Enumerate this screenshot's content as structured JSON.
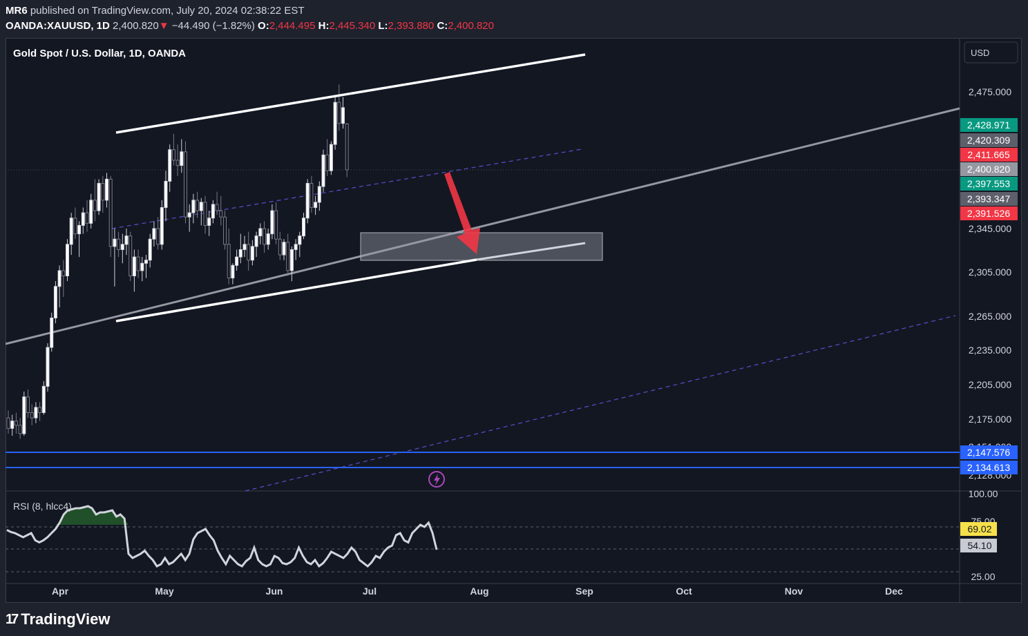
{
  "header": {
    "author": "MR6",
    "published": "published on TradingView.com, July 20, 2024 02:38:22 EST",
    "symbol": "OANDA:XAUUSD, 1D",
    "last": "2,400.820",
    "change_arrow": "▼",
    "change": "−44.490 (−1.82%)",
    "o_label": "O:",
    "o_value": "2,444.495",
    "h_label": "H:",
    "h_value": "2,445.340",
    "l_label": "L:",
    "l_value": "2,393.880",
    "c_label": "C:",
    "c_value": "2,400.820"
  },
  "chart_title": "Gold Spot / U.S. Dollar, 1D, OANDA",
  "currency_button": "USD",
  "footer": {
    "brand": "TradingView",
    "brand_icon": "tradingview-logo-icon"
  },
  "colors": {
    "background": "#131722",
    "bull": "#d1d4dc",
    "bear": "#787b86",
    "trend_white": "#ffffff",
    "trend_grey": "#9598a1",
    "dashed_purple": "#5b4fcf",
    "arrow": "#f23645",
    "rsi_line": "#d1d4dc",
    "rsi_fill": "#2e7d32",
    "blue_level": "#2962ff"
  },
  "chart_data": [
    {
      "type": "candlestick",
      "title": "Gold Spot / U.S. Dollar, 1D, OANDA",
      "currency": "USD",
      "x_ticks": [
        "Apr",
        "May",
        "Jun",
        "Jul",
        "Aug",
        "Sep",
        "Oct",
        "Nov",
        "Dec"
      ],
      "y_ticks": [
        "2,475.000",
        "2,345.000",
        "2,305.000",
        "2,265.000",
        "2,235.000",
        "2,205.000",
        "2,175.000",
        "2,151.000",
        "2,128.000"
      ],
      "price_labels": [
        {
          "value": "2,428.971",
          "color": "#089981"
        },
        {
          "value": "2,420.309",
          "color": "#5d606b"
        },
        {
          "value": "2,411.665",
          "color": "#f23645"
        },
        {
          "value": "2,400.820",
          "color": "#9598a1"
        },
        {
          "value": "2,397.553",
          "color": "#089981"
        },
        {
          "value": "2,393.347",
          "color": "#5d606b"
        },
        {
          "value": "2,391.526",
          "color": "#f23645"
        },
        {
          "value": "2,147.576",
          "color": "#2962ff"
        },
        {
          "value": "2,134.613",
          "color": "#2962ff"
        }
      ],
      "horizontal_levels": [
        2147.576,
        2134.613
      ],
      "ohlc": [
        [
          2165,
          2172,
          2150,
          2155
        ],
        [
          2155,
          2168,
          2148,
          2162
        ],
        [
          2162,
          2170,
          2150,
          2158
        ],
        [
          2158,
          2165,
          2145,
          2150
        ],
        [
          2150,
          2190,
          2148,
          2185
        ],
        [
          2185,
          2192,
          2165,
          2170
        ],
        [
          2170,
          2178,
          2158,
          2165
        ],
        [
          2165,
          2180,
          2160,
          2175
        ],
        [
          2175,
          2180,
          2162,
          2170
        ],
        [
          2170,
          2200,
          2168,
          2195
        ],
        [
          2195,
          2236,
          2190,
          2232
        ],
        [
          2232,
          2265,
          2228,
          2260
        ],
        [
          2260,
          2295,
          2255,
          2290
        ],
        [
          2290,
          2310,
          2270,
          2305
        ],
        [
          2305,
          2315,
          2280,
          2300
        ],
        [
          2300,
          2335,
          2295,
          2330
        ],
        [
          2330,
          2360,
          2320,
          2355
        ],
        [
          2355,
          2365,
          2335,
          2340
        ],
        [
          2340,
          2352,
          2318,
          2348
        ],
        [
          2348,
          2365,
          2340,
          2360
        ],
        [
          2360,
          2372,
          2342,
          2350
        ],
        [
          2350,
          2378,
          2345,
          2372
        ],
        [
          2372,
          2392,
          2352,
          2362
        ],
        [
          2362,
          2392,
          2358,
          2388
        ],
        [
          2388,
          2395,
          2360,
          2372
        ],
        [
          2372,
          2398,
          2365,
          2392
        ],
        [
          2392,
          2395,
          2318,
          2328
        ],
        [
          2328,
          2345,
          2290,
          2335
        ],
        [
          2335,
          2342,
          2318,
          2325
        ],
        [
          2325,
          2340,
          2312,
          2330
        ],
        [
          2330,
          2345,
          2320,
          2338
        ],
        [
          2338,
          2342,
          2295,
          2300
        ],
        [
          2300,
          2325,
          2285,
          2318
        ],
        [
          2318,
          2325,
          2298,
          2305
        ],
        [
          2305,
          2318,
          2295,
          2312
        ],
        [
          2312,
          2320,
          2298,
          2315
        ],
        [
          2315,
          2340,
          2308,
          2335
        ],
        [
          2335,
          2352,
          2328,
          2345
        ],
        [
          2345,
          2356,
          2325,
          2330
        ],
        [
          2330,
          2372,
          2325,
          2365
        ],
        [
          2365,
          2400,
          2352,
          2390
        ],
        [
          2390,
          2425,
          2380,
          2420
        ],
        [
          2420,
          2435,
          2405,
          2410
        ],
        [
          2410,
          2425,
          2395,
          2405
        ],
        [
          2405,
          2430,
          2398,
          2418
        ],
        [
          2418,
          2428,
          2350,
          2356
        ],
        [
          2356,
          2368,
          2342,
          2360
        ],
        [
          2360,
          2378,
          2350,
          2372
        ],
        [
          2372,
          2380,
          2355,
          2362
        ],
        [
          2362,
          2374,
          2348,
          2370
        ],
        [
          2370,
          2376,
          2340,
          2348
        ],
        [
          2348,
          2362,
          2338,
          2355
        ],
        [
          2355,
          2372,
          2350,
          2368
        ],
        [
          2368,
          2380,
          2358,
          2362
        ],
        [
          2362,
          2376,
          2348,
          2356
        ],
        [
          2356,
          2362,
          2325,
          2330
        ],
        [
          2330,
          2345,
          2292,
          2298
        ],
        [
          2298,
          2312,
          2292,
          2310
        ],
        [
          2310,
          2325,
          2305,
          2318
        ],
        [
          2318,
          2340,
          2312,
          2325
        ],
        [
          2325,
          2338,
          2318,
          2330
        ],
        [
          2330,
          2342,
          2305,
          2315
        ],
        [
          2315,
          2334,
          2310,
          2328
        ],
        [
          2328,
          2342,
          2318,
          2338
        ],
        [
          2338,
          2350,
          2330,
          2345
        ],
        [
          2345,
          2352,
          2322,
          2330
        ],
        [
          2330,
          2345,
          2325,
          2340
        ],
        [
          2340,
          2368,
          2335,
          2362
        ],
        [
          2362,
          2370,
          2330,
          2335
        ],
        [
          2335,
          2342,
          2315,
          2320
        ],
        [
          2320,
          2335,
          2315,
          2332
        ],
        [
          2332,
          2340,
          2300,
          2305
        ],
        [
          2305,
          2328,
          2295,
          2325
        ],
        [
          2325,
          2335,
          2315,
          2330
        ],
        [
          2330,
          2342,
          2318,
          2338
        ],
        [
          2338,
          2360,
          2335,
          2355
        ],
        [
          2355,
          2392,
          2350,
          2388
        ],
        [
          2388,
          2395,
          2360,
          2365
        ],
        [
          2365,
          2376,
          2358,
          2370
        ],
        [
          2370,
          2390,
          2362,
          2385
        ],
        [
          2385,
          2420,
          2380,
          2415
        ],
        [
          2415,
          2430,
          2395,
          2400
        ],
        [
          2400,
          2428,
          2396,
          2425
        ],
        [
          2425,
          2470,
          2420,
          2465
        ],
        [
          2465,
          2482,
          2438,
          2445
        ],
        [
          2445,
          2470,
          2440,
          2460
        ],
        [
          2444.495,
          2445.34,
          2393.88,
          2400.82
        ]
      ]
    },
    {
      "type": "line",
      "title": "RSI (8, hlcc4)",
      "y_ticks": [
        "100.00",
        "75.00",
        "50.00",
        "25.00"
      ],
      "ylim": [
        20,
        100
      ],
      "levels": [
        70,
        50,
        30
      ],
      "value_labels": [
        {
          "value": "69.02",
          "color": "#f7e14a"
        },
        {
          "value": "54.10",
          "color": "#c8cbd2"
        }
      ],
      "values": [
        65,
        63,
        62,
        60,
        58,
        60,
        62,
        55,
        53,
        55,
        58,
        62,
        66,
        72,
        80,
        84,
        85,
        86,
        86,
        87,
        88,
        86,
        80,
        82,
        82,
        83,
        84,
        78,
        80,
        76,
        42,
        38,
        40,
        42,
        45,
        40,
        36,
        30,
        32,
        38,
        32,
        34,
        38,
        42,
        36,
        42,
        56,
        62,
        64,
        66,
        60,
        55,
        45,
        38,
        32,
        40,
        36,
        32,
        30,
        35,
        38,
        48,
        36,
        32,
        30,
        32,
        40,
        38,
        33,
        32,
        34,
        38,
        48,
        40,
        34,
        32,
        36,
        30,
        33,
        38,
        44,
        42,
        40,
        38,
        42,
        48,
        44,
        36,
        33,
        30,
        34,
        40,
        38,
        44,
        48,
        50,
        60,
        62,
        55,
        53,
        62,
        66,
        70,
        68,
        72,
        62,
        46
      ]
    }
  ]
}
